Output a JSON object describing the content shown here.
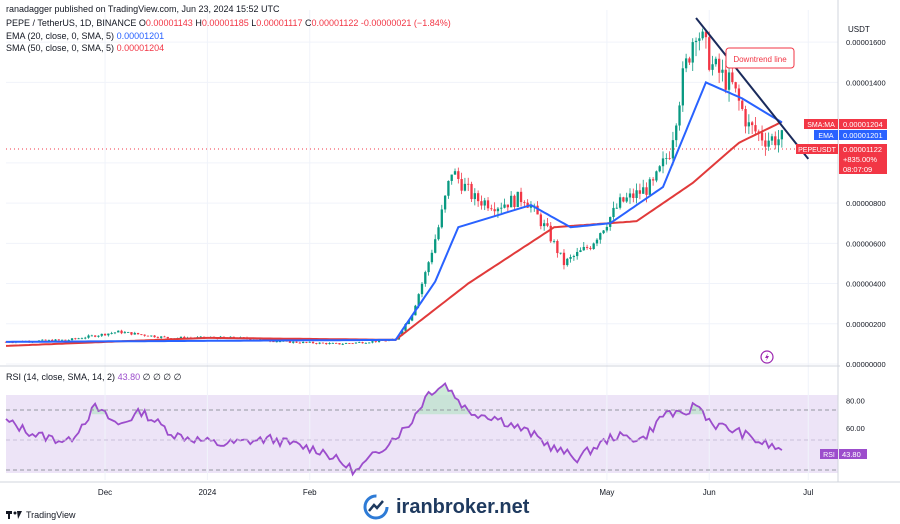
{
  "header": {
    "published": "ranadagger published on TradingView.com, Jun 23, 2024 15:52 UTC",
    "symbol": "PEPE / TetherUS, 1D, BINANCE",
    "o_label": "O",
    "o_val": "0.00001143",
    "h_label": "H",
    "h_val": "0.00001185",
    "l_label": "L",
    "l_val": "0.00001117",
    "c_label": "C",
    "c_val": "0.00001122",
    "change": "-0.00000021 (−1.84%)",
    "ema_label": "EMA (20, close, 0, SMA, 5)",
    "ema_val": "0.00001201",
    "sma_label": "SMA (50, close, 0, SMA, 5)",
    "sma_val": "0.00001204"
  },
  "colors": {
    "up": "#089981",
    "down": "#f23645",
    "ema": "#2962ff",
    "sma": "#e13a3a",
    "rsi": "#9c4dcc",
    "trend": "#1a2b5c",
    "band": "#ede4f7",
    "grid": "#f0f3fa"
  },
  "price_axis": {
    "currency": "USDT",
    "ticks": [
      "0.00001600",
      "0.00001400",
      "0.00001000",
      "0.00000800",
      "0.00000600",
      "0.00000400",
      "0.00000200",
      "0.00000000"
    ]
  },
  "price_labels": {
    "sma_tag": "SMA:MA",
    "sma_value": "0.00001204",
    "ema_tag": "EMA",
    "ema_value": "0.00001201",
    "sym_tag": "PEPEUSDT",
    "last_price": "0.00001122",
    "pct": "+835.00%",
    "countdown": "08:07:09"
  },
  "annotation": "Downtrend line",
  "rsi": {
    "label": "RSI (14, close, SMA, 14, 2)",
    "value_label": "43.80",
    "empties": "∅ ∅ ∅ ∅",
    "ticks": [
      "80.00",
      "60.00"
    ],
    "tag": "RSI",
    "tag_value": "43.80"
  },
  "time_axis": [
    "Dec",
    "2024",
    "Feb",
    "May",
    "Jun",
    "Jul"
  ],
  "brand": "TradingView",
  "watermark": "iranbroker.net",
  "chart_data": {
    "type": "candlestick",
    "title": "PEPE / TetherUS, 1D, BINANCE",
    "ylabel": "USDT",
    "ylim": [
      0,
      1.76e-05
    ],
    "rsi_ylim": [
      22,
      95
    ],
    "x_start": "2023-11-01",
    "x_end": "2024-07-10",
    "series": [
      {
        "name": "EMA (20, close, 0, SMA, 5)",
        "last": 1.201e-05
      },
      {
        "name": "SMA (50, close, 0, SMA, 5)",
        "last": 1.204e-05
      },
      {
        "name": "RSI (14, close, SMA, 14, 2)",
        "last": 43.8
      }
    ],
    "close_anchors": [
      [
        "2023-11-01",
        1.1e-06
      ],
      [
        "2023-11-20",
        1.2e-06
      ],
      [
        "2023-12-05",
        1.6e-06
      ],
      [
        "2023-12-20",
        1.3e-06
      ],
      [
        "2024-01-10",
        1.3e-06
      ],
      [
        "2024-01-25",
        1.1e-06
      ],
      [
        "2024-02-10",
        1e-06
      ],
      [
        "2024-02-27",
        1.2e-06
      ],
      [
        "2024-03-03",
        2.5e-06
      ],
      [
        "2024-03-07",
        4.5e-06
      ],
      [
        "2024-03-11",
        6.8e-06
      ],
      [
        "2024-03-15",
        9.6e-06
      ],
      [
        "2024-03-22",
        8.2e-06
      ],
      [
        "2024-03-29",
        7.9e-06
      ],
      [
        "2024-04-06",
        8.3e-06
      ],
      [
        "2024-04-13",
        6.6e-06
      ],
      [
        "2024-04-18",
        5e-06
      ],
      [
        "2024-04-26",
        5.9e-06
      ],
      [
        "2024-05-05",
        8e-06
      ],
      [
        "2024-05-15",
        8.9e-06
      ],
      [
        "2024-05-20",
        1.06e-05
      ],
      [
        "2024-05-24",
        1.42e-05
      ],
      [
        "2024-05-28",
        1.68e-05
      ],
      [
        "2024-06-02",
        1.48e-05
      ],
      [
        "2024-06-08",
        1.38e-05
      ],
      [
        "2024-06-13",
        1.18e-05
      ],
      [
        "2024-06-18",
        1.12e-05
      ],
      [
        "2024-06-23",
        1.12e-05
      ]
    ],
    "ema_anchors": [
      [
        "2023-11-01",
        1.1e-06
      ],
      [
        "2024-02-27",
        1.2e-06
      ],
      [
        "2024-03-10",
        4.1e-06
      ],
      [
        "2024-03-17",
        6.8e-06
      ],
      [
        "2024-04-08",
        7.9e-06
      ],
      [
        "2024-04-20",
        6.8e-06
      ],
      [
        "2024-05-02",
        7e-06
      ],
      [
        "2024-05-18",
        8.8e-06
      ],
      [
        "2024-05-31",
        1.4e-05
      ],
      [
        "2024-06-11",
        1.32e-05
      ],
      [
        "2024-06-23",
        1.201e-05
      ]
    ],
    "sma_anchors": [
      [
        "2023-11-01",
        9e-07
      ],
      [
        "2024-01-01",
        1.3e-06
      ],
      [
        "2024-02-27",
        1.2e-06
      ],
      [
        "2024-03-20",
        4e-06
      ],
      [
        "2024-04-15",
        6.8e-06
      ],
      [
        "2024-05-10",
        7.1e-06
      ],
      [
        "2024-05-27",
        9e-06
      ],
      [
        "2024-06-10",
        1.1e-05
      ],
      [
        "2024-06-23",
        1.204e-05
      ]
    ],
    "rsi_anchors": [
      [
        "2023-11-01",
        65
      ],
      [
        "2023-11-10",
        55
      ],
      [
        "2023-11-20",
        50
      ],
      [
        "2023-11-28",
        75
      ],
      [
        "2023-12-05",
        62
      ],
      [
        "2023-12-12",
        72
      ],
      [
        "2023-12-22",
        55
      ],
      [
        "2024-01-05",
        48
      ],
      [
        "2024-01-20",
        52
      ],
      [
        "2024-02-05",
        43
      ],
      [
        "2024-02-15",
        28
      ],
      [
        "2024-02-25",
        50
      ],
      [
        "2024-03-02",
        62
      ],
      [
        "2024-03-08",
        86
      ],
      [
        "2024-03-13",
        92
      ],
      [
        "2024-03-20",
        72
      ],
      [
        "2024-03-28",
        68
      ],
      [
        "2024-04-08",
        56
      ],
      [
        "2024-04-15",
        45
      ],
      [
        "2024-04-22",
        38
      ],
      [
        "2024-05-03",
        54
      ],
      [
        "2024-05-12",
        52
      ],
      [
        "2024-05-19",
        72
      ],
      [
        "2024-05-24",
        68
      ],
      [
        "2024-05-28",
        78
      ],
      [
        "2024-06-02",
        63
      ],
      [
        "2024-06-10",
        57
      ],
      [
        "2024-06-16",
        50
      ],
      [
        "2024-06-23",
        43.8
      ]
    ],
    "trend_line": [
      [
        "2024-05-28",
        1.72e-05
      ],
      [
        "2024-07-01",
        1.02e-05
      ]
    ]
  }
}
